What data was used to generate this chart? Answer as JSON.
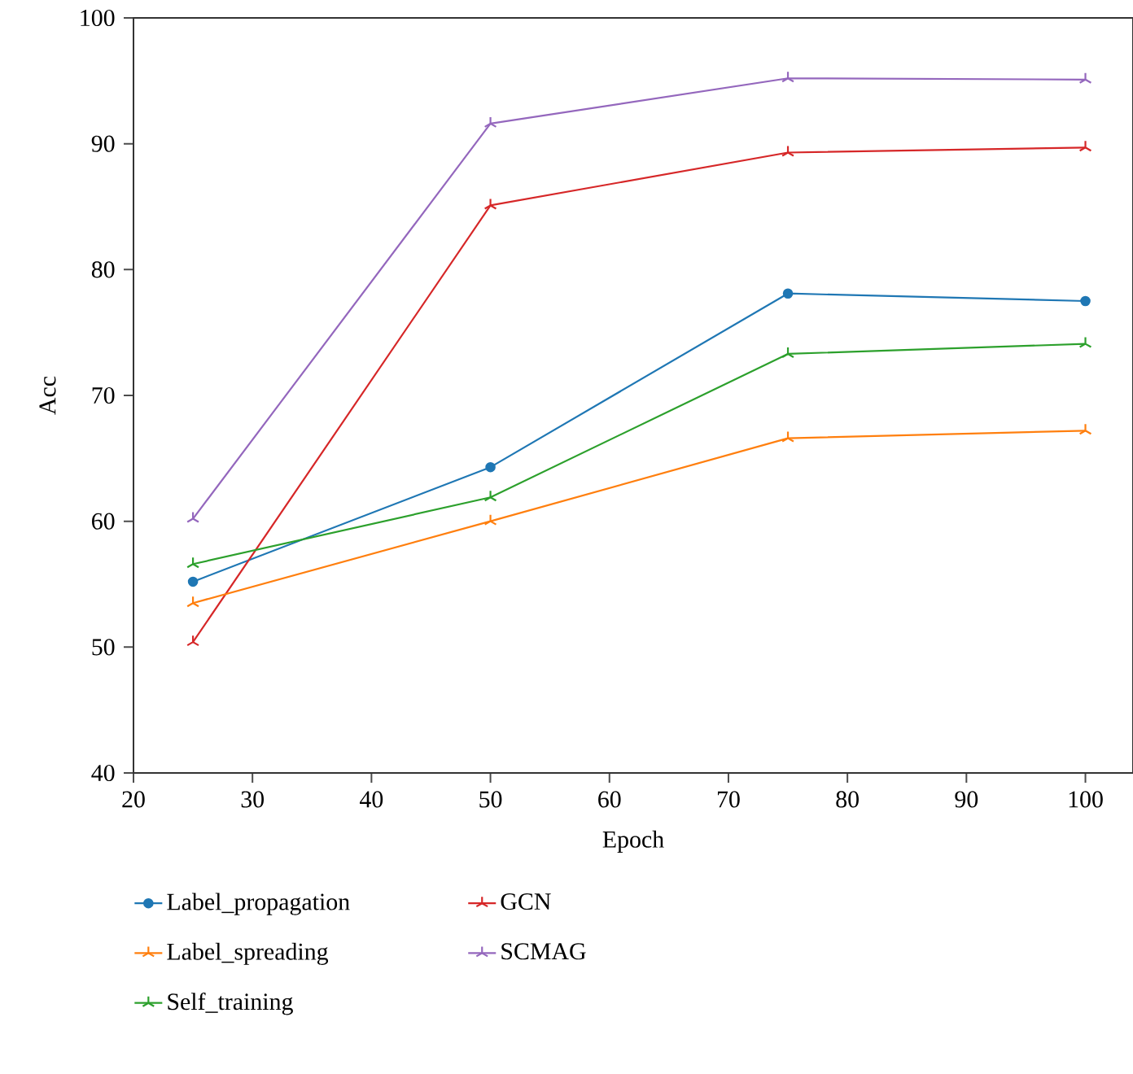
{
  "chart_data": {
    "type": "line",
    "xlabel": "Epoch",
    "ylabel": "Acc",
    "x": [
      25,
      50,
      75,
      100
    ],
    "series": [
      {
        "name": "Label_propagation",
        "color": "#1f77b4",
        "marker": "circle",
        "values": [
          55.2,
          64.3,
          78.1,
          77.5
        ]
      },
      {
        "name": "Label_spreading",
        "color": "#ff7f0e",
        "marker": "cross",
        "values": [
          53.5,
          60.0,
          66.6,
          67.2
        ]
      },
      {
        "name": "Self_training",
        "color": "#2ca02c",
        "marker": "cross",
        "values": [
          56.6,
          61.9,
          73.3,
          74.1
        ]
      },
      {
        "name": "GCN",
        "color": "#d62728",
        "marker": "cross",
        "values": [
          50.4,
          85.1,
          89.3,
          89.7
        ]
      },
      {
        "name": "SCMAG",
        "color": "#9467bd",
        "marker": "cross",
        "values": [
          60.2,
          91.6,
          95.2,
          95.1
        ]
      }
    ],
    "xlim": [
      20,
      104
    ],
    "ylim": [
      40,
      100
    ],
    "xticks": [
      20,
      30,
      40,
      50,
      60,
      70,
      80,
      90,
      100
    ],
    "yticks": [
      40,
      50,
      60,
      70,
      80,
      90,
      100
    ],
    "legend": "bottom",
    "grid": false,
    "line_style": "solid"
  }
}
